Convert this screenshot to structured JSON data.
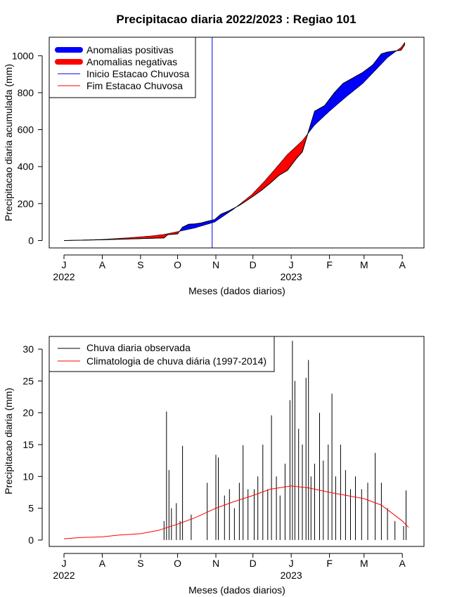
{
  "chart_data": [
    {
      "type": "area",
      "title": "Precipitacao diaria 2022/2023 : Regiao 101",
      "xlabel": "Meses (dados diarios)",
      "ylabel": "Precipitacao diaria acumulada (mm)",
      "x_range": [
        "2022-07-01",
        "2023-04-06"
      ],
      "ylim": [
        -40,
        1100
      ],
      "y_ticks": [
        0,
        200,
        400,
        600,
        800,
        1000
      ],
      "x_ticks": [
        {
          "date": "2022-07-01",
          "label": "J"
        },
        {
          "date": "2022-08-01",
          "label": "A"
        },
        {
          "date": "2022-09-01",
          "label": "S"
        },
        {
          "date": "2022-10-01",
          "label": "O"
        },
        {
          "date": "2022-11-01",
          "label": "N"
        },
        {
          "date": "2022-12-01",
          "label": "D"
        },
        {
          "date": "2023-01-01",
          "label": "J"
        },
        {
          "date": "2023-02-01",
          "label": "F"
        },
        {
          "date": "2023-03-01",
          "label": "M"
        },
        {
          "date": "2023-04-01",
          "label": "A"
        }
      ],
      "year_labels": [
        {
          "date": "2022-07-01",
          "label": "2022"
        },
        {
          "date": "2023-01-01",
          "label": "2023"
        }
      ],
      "rainy_season_start": "2022-10-29",
      "legend_position": "top-left",
      "legend": [
        {
          "label": "Anomalias positivas",
          "color": "#0000ff",
          "style": "thick"
        },
        {
          "label": "Anomalias negativas",
          "color": "#ff0000",
          "style": "thick"
        },
        {
          "label": "Inicio Estacao Chuvosa",
          "color": "#0000ff",
          "style": "thin"
        },
        {
          "label": "Fim Estacao Chuvosa",
          "color": "#ff0000",
          "style": "thin"
        }
      ],
      "series": [
        {
          "name": "Observed",
          "points": [
            [
              "2022-07-01",
              0
            ],
            [
              "2022-08-01",
              4
            ],
            [
              "2022-08-20",
              8
            ],
            [
              "2022-09-10",
              12
            ],
            [
              "2022-09-20",
              14
            ],
            [
              "2022-09-23",
              32
            ],
            [
              "2022-10-01",
              36
            ],
            [
              "2022-10-05",
              72
            ],
            [
              "2022-10-10",
              88
            ],
            [
              "2022-10-15",
              90
            ],
            [
              "2022-10-20",
              95
            ],
            [
              "2022-10-25",
              104
            ],
            [
              "2022-10-31",
              113
            ],
            [
              "2022-11-05",
              142
            ],
            [
              "2022-11-12",
              162
            ],
            [
              "2022-11-20",
              190
            ],
            [
              "2022-11-30",
              234
            ],
            [
              "2022-12-08",
              272
            ],
            [
              "2022-12-15",
              310
            ],
            [
              "2022-12-22",
              352
            ],
            [
              "2022-12-29",
              380
            ],
            [
              "2023-01-05",
              442
            ],
            [
              "2023-01-10",
              480
            ],
            [
              "2023-01-15",
              590
            ],
            [
              "2023-01-20",
              700
            ],
            [
              "2023-01-28",
              730
            ],
            [
              "2023-02-05",
              800
            ],
            [
              "2023-02-12",
              850
            ],
            [
              "2023-02-20",
              880
            ],
            [
              "2023-02-28",
              910
            ],
            [
              "2023-03-08",
              950
            ],
            [
              "2023-03-15",
              1010
            ],
            [
              "2023-03-20",
              1020
            ],
            [
              "2023-03-31",
              1030
            ],
            [
              "2023-04-03",
              1060
            ]
          ]
        },
        {
          "name": "Climatology",
          "points": [
            [
              "2022-07-01",
              0
            ],
            [
              "2022-08-01",
              6
            ],
            [
              "2022-08-20",
              14
            ],
            [
              "2022-09-10",
              25
            ],
            [
              "2022-09-20",
              33
            ],
            [
              "2022-10-01",
              48
            ],
            [
              "2022-10-15",
              68
            ],
            [
              "2022-10-31",
              100
            ],
            [
              "2022-11-15",
              168
            ],
            [
              "2022-11-30",
              248
            ],
            [
              "2022-12-10",
              318
            ],
            [
              "2022-12-20",
              395
            ],
            [
              "2022-12-29",
              466
            ],
            [
              "2023-01-10",
              540
            ],
            [
              "2023-01-20",
              625
            ],
            [
              "2023-02-01",
              700
            ],
            [
              "2023-02-15",
              780
            ],
            [
              "2023-02-28",
              850
            ],
            [
              "2023-03-10",
              920
            ],
            [
              "2023-03-20",
              990
            ],
            [
              "2023-03-31",
              1045
            ],
            [
              "2023-04-03",
              1072
            ]
          ]
        }
      ]
    },
    {
      "type": "bar",
      "xlabel": "Meses (dados diarios)",
      "ylabel": "Precipitacao diaria (mm)",
      "x_range": [
        "2022-07-01",
        "2023-04-06"
      ],
      "ylim": [
        -1,
        32
      ],
      "y_ticks": [
        0,
        5,
        10,
        15,
        20,
        25,
        30
      ],
      "legend_position": "top-left",
      "legend": [
        {
          "label": "Chuva diaria observada",
          "color": "#000000"
        },
        {
          "label": "Climatologia de chuva diária (1997-2014)",
          "color": "#ff0000"
        }
      ],
      "daily_observed": [
        [
          "2022-09-20",
          3
        ],
        [
          "2022-09-22",
          20.2
        ],
        [
          "2022-09-24",
          11
        ],
        [
          "2022-09-26",
          5
        ],
        [
          "2022-09-30",
          5.8
        ],
        [
          "2022-10-03",
          3
        ],
        [
          "2022-10-05",
          14.8
        ],
        [
          "2022-10-12",
          4
        ],
        [
          "2022-10-25",
          9
        ],
        [
          "2022-11-01",
          13.4
        ],
        [
          "2022-11-03",
          13
        ],
        [
          "2022-11-08",
          7
        ],
        [
          "2022-11-12",
          8
        ],
        [
          "2022-11-16",
          5
        ],
        [
          "2022-11-20",
          9
        ],
        [
          "2022-11-23",
          14.9
        ],
        [
          "2022-11-27",
          8
        ],
        [
          "2022-12-02",
          8
        ],
        [
          "2022-12-05",
          10
        ],
        [
          "2022-12-09",
          15
        ],
        [
          "2022-12-13",
          8
        ],
        [
          "2022-12-16",
          19.6
        ],
        [
          "2022-12-20",
          10
        ],
        [
          "2022-12-23",
          7
        ],
        [
          "2022-12-27",
          12
        ],
        [
          "2022-12-31",
          22
        ],
        [
          "2023-01-02",
          31.3
        ],
        [
          "2023-01-04",
          25
        ],
        [
          "2023-01-07",
          17.5
        ],
        [
          "2023-01-10",
          15
        ],
        [
          "2023-01-13",
          25.5
        ],
        [
          "2023-01-15",
          28.3
        ],
        [
          "2023-01-17",
          10
        ],
        [
          "2023-01-20",
          12
        ],
        [
          "2023-01-24",
          20
        ],
        [
          "2023-01-27",
          12.5
        ],
        [
          "2023-01-31",
          15
        ],
        [
          "2023-02-03",
          23
        ],
        [
          "2023-02-06",
          10
        ],
        [
          "2023-02-10",
          15
        ],
        [
          "2023-02-14",
          11
        ],
        [
          "2023-02-18",
          8
        ],
        [
          "2023-02-22",
          10
        ],
        [
          "2023-02-27",
          8
        ],
        [
          "2023-03-04",
          9
        ],
        [
          "2023-03-10",
          13.7
        ],
        [
          "2023-03-15",
          9
        ],
        [
          "2023-03-20",
          5
        ],
        [
          "2023-03-26",
          3
        ],
        [
          "2023-04-02",
          2.2
        ],
        [
          "2023-04-04",
          7.8
        ]
      ],
      "climatology": [
        [
          "2022-07-01",
          0.2
        ],
        [
          "2022-07-15",
          0.4
        ],
        [
          "2022-08-01",
          0.5
        ],
        [
          "2022-08-15",
          0.8
        ],
        [
          "2022-09-01",
          1
        ],
        [
          "2022-09-15",
          1.5
        ],
        [
          "2022-10-01",
          2.5
        ],
        [
          "2022-10-15",
          3.5
        ],
        [
          "2022-11-01",
          5
        ],
        [
          "2022-11-15",
          6
        ],
        [
          "2022-12-01",
          7
        ],
        [
          "2022-12-15",
          8
        ],
        [
          "2023-01-01",
          8.5
        ],
        [
          "2023-01-15",
          8.2
        ],
        [
          "2023-02-01",
          7.5
        ],
        [
          "2023-02-15",
          7
        ],
        [
          "2023-03-01",
          6.5
        ],
        [
          "2023-03-15",
          5.5
        ],
        [
          "2023-04-01",
          3
        ],
        [
          "2023-04-06",
          2
        ]
      ]
    }
  ]
}
